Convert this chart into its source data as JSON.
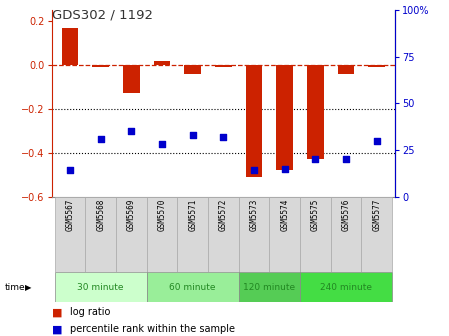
{
  "title": "GDS302 / 1192",
  "samples": [
    "GSM5567",
    "GSM5568",
    "GSM5569",
    "GSM5570",
    "GSM5571",
    "GSM5572",
    "GSM5573",
    "GSM5574",
    "GSM5575",
    "GSM5576",
    "GSM5577"
  ],
  "log_ratio": [
    0.17,
    -0.01,
    -0.13,
    0.02,
    -0.04,
    -0.01,
    -0.51,
    -0.48,
    -0.43,
    -0.04,
    -0.01
  ],
  "percentile_rank": [
    14,
    31,
    35,
    28,
    33,
    32,
    14,
    15,
    20,
    20,
    30
  ],
  "ylim_left": [
    -0.6,
    0.25
  ],
  "ylim_right": [
    0,
    100
  ],
  "yticks_left": [
    -0.6,
    -0.4,
    -0.2,
    0.0,
    0.2
  ],
  "yticks_right": [
    0,
    25,
    50,
    75,
    100
  ],
  "hline_y": 0.0,
  "dotted_lines": [
    -0.2,
    -0.4
  ],
  "bar_color": "#cc2200",
  "scatter_color": "#0000cc",
  "background_color": "#ffffff",
  "group_labels": [
    "30 minute",
    "60 minute",
    "120 minute",
    "240 minute"
  ],
  "group_ranges": [
    [
      0,
      2
    ],
    [
      3,
      5
    ],
    [
      6,
      7
    ],
    [
      8,
      10
    ]
  ],
  "group_colors": [
    "#ccffcc",
    "#99ee99",
    "#55cc55",
    "#44dd44"
  ],
  "legend_log_ratio_color": "#cc2200",
  "legend_percentile_color": "#0000cc",
  "sample_box_color": "#d8d8d8",
  "time_label_color": "#228822"
}
